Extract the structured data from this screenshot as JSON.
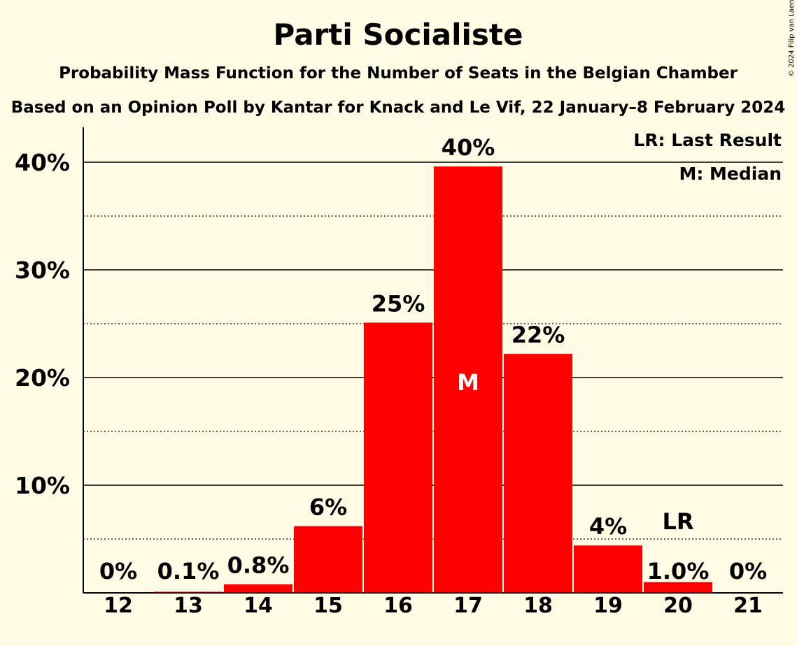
{
  "chart_data": {
    "type": "bar",
    "title": "Parti Socialiste",
    "subtitle": "Probability Mass Function for the Number of Seats in the Belgian Chamber",
    "subtitle2": "Based on an Opinion Poll by Kantar for Knack and Le Vif, 22 January–8 February 2024",
    "copyright": "© 2024 Filip van Laenen",
    "categories": [
      "12",
      "13",
      "14",
      "15",
      "16",
      "17",
      "18",
      "19",
      "20",
      "21"
    ],
    "values": [
      0,
      0.1,
      0.8,
      6.2,
      25.1,
      39.6,
      22.2,
      4.4,
      1.0,
      0
    ],
    "value_labels": [
      "0%",
      "0.1%",
      "0.8%",
      "6%",
      "25%",
      "40%",
      "22%",
      "4%",
      "1.0%",
      "0%"
    ],
    "ylim": [
      0,
      43
    ],
    "yticks": [
      10,
      20,
      30,
      40
    ],
    "ytick_labels": [
      "10%",
      "20%",
      "30%",
      "40%"
    ],
    "minor_grid": [
      5,
      15,
      25,
      35
    ],
    "bar_color": "#FF0000",
    "median_category": "17",
    "median_marker": "M",
    "last_result_category": "20",
    "last_result_marker": "LR",
    "legend": {
      "last_result": "LR: Last Result",
      "median": "M: Median",
      "position": "top-right"
    }
  }
}
